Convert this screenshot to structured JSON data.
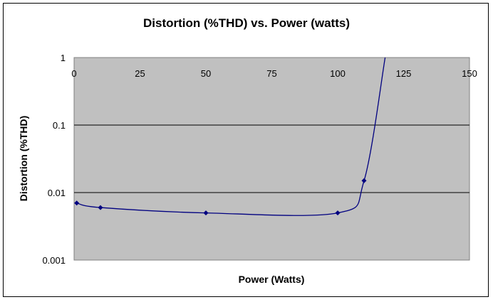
{
  "chart_data": {
    "type": "scatter",
    "title": "Distortion (%THD) vs. Power (watts)",
    "xlabel": "Power (Watts)",
    "ylabel": "Distortion (%THD)",
    "xlim": [
      0,
      150
    ],
    "ylim": [
      0.001,
      1
    ],
    "yscale": "log",
    "grid": "horizontal",
    "x_ticks": [
      0,
      25,
      50,
      75,
      100,
      125,
      150
    ],
    "x_tick_labels": [
      "0",
      "25",
      "50",
      "75",
      "100",
      "125",
      "150"
    ],
    "y_ticks": [
      1,
      0.1,
      0.01,
      0.001
    ],
    "y_tick_labels": [
      "1",
      "0.1",
      "0.01",
      "0.001"
    ],
    "series": [
      {
        "color": "#000080",
        "markers": true,
        "smoothed": true,
        "x": [
          1,
          10,
          50,
          100,
          110,
          118
        ],
        "y": [
          0.007,
          0.006,
          0.005,
          0.005,
          0.015,
          1
        ]
      }
    ],
    "colors": {
      "plot_background": "#c0c0c0",
      "gridline": "#000000",
      "series_line": "#000080"
    }
  }
}
